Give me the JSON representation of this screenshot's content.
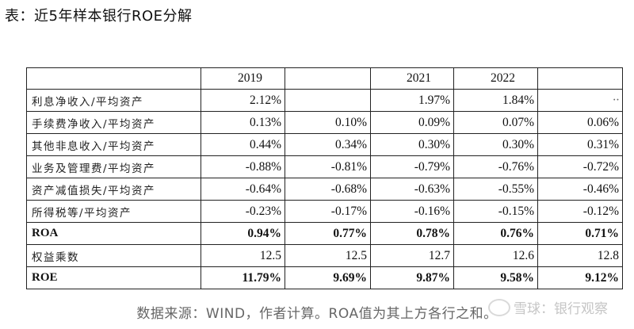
{
  "title": "表：近5年样本银行ROE分解",
  "header": [
    "",
    "2019",
    "",
    "2021",
    "2022",
    ""
  ],
  "rows": [
    {
      "label": "利息净收入/平均资产",
      "values": [
        "2.12%",
        "",
        "1.97%",
        "1.84%",
        "··"
      ]
    },
    {
      "label": "手续费净收入/平均资产",
      "values": [
        "0.13%",
        "0.10%",
        "0.09%",
        "0.07%",
        "0.06%"
      ]
    },
    {
      "label": "其他非息收入/平均资产",
      "values": [
        "0.44%",
        "0.34%",
        "0.30%",
        "0.30%",
        "0.31%"
      ]
    },
    {
      "label": "业务及管理费/平均资产",
      "values": [
        "-0.88%",
        "-0.81%",
        "-0.79%",
        "-0.76%",
        "-0.72%"
      ]
    },
    {
      "label": "资产减值损失/平均资产",
      "values": [
        "-0.64%",
        "-0.68%",
        "-0.63%",
        "-0.55%",
        "-0.46%"
      ]
    },
    {
      "label": "所得税等/平均资产",
      "values": [
        "-0.23%",
        "-0.17%",
        "-0.16%",
        "-0.15%",
        "-0.12%"
      ]
    },
    {
      "label": "ROA",
      "values": [
        "0.94%",
        "0.77%",
        "0.78%",
        "0.76%",
        "0.71%"
      ]
    },
    {
      "label": "权益乘数",
      "values": [
        "12.5",
        "12.5",
        "12.7",
        "12.6",
        "12.8"
      ]
    },
    {
      "label": "ROE",
      "values": [
        "11.79%",
        "9.69%",
        "9.87%",
        "9.58%",
        "9.12%"
      ]
    }
  ],
  "source": "数据来源：WIND，作者计算。ROA值为其上方各行之和。",
  "watermark": "雪球：银行观察"
}
